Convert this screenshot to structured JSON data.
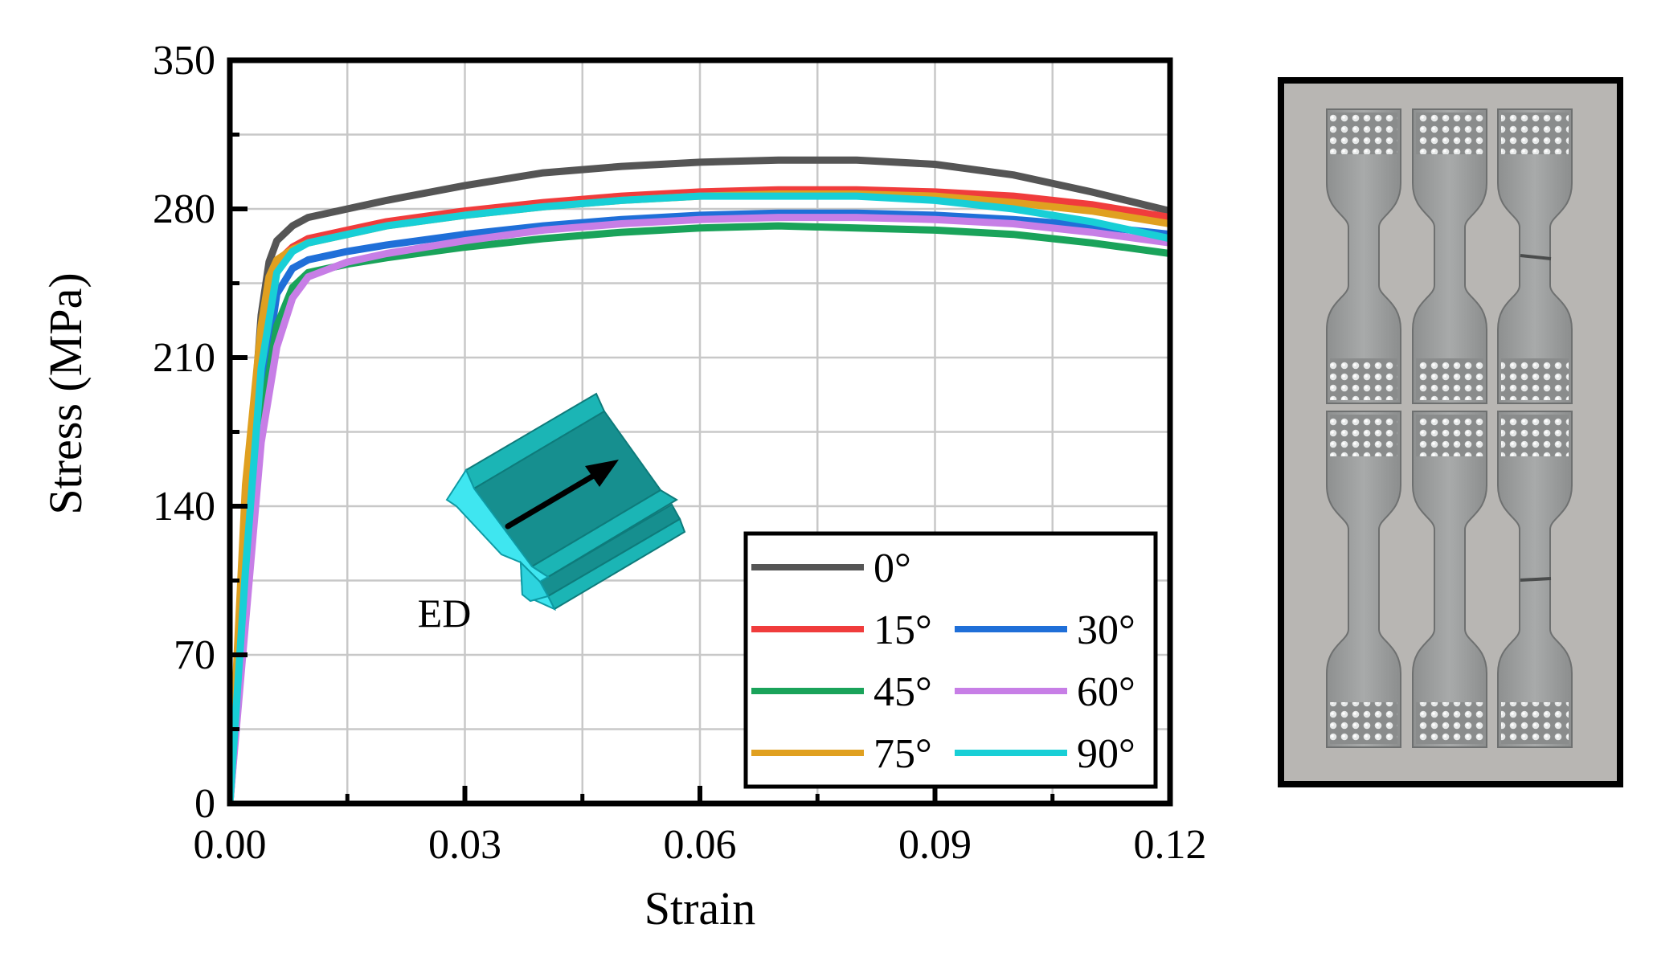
{
  "chart_data": {
    "type": "line",
    "xlabel": "Strain",
    "ylabel": "Stress (MPa)",
    "xlim": [
      0,
      0.12
    ],
    "ylim": [
      0,
      350
    ],
    "xticks": [
      "0.00",
      "0.03",
      "0.06",
      "0.09",
      "0.12"
    ],
    "yticks": [
      "0",
      "70",
      "140",
      "210",
      "280",
      "350"
    ],
    "xtick_values": [
      0,
      0.03,
      0.06,
      0.09,
      0.12
    ],
    "ytick_values": [
      0,
      70,
      140,
      210,
      280,
      350
    ],
    "grid": true,
    "legend_position": "bottom-right",
    "annotation": "ED",
    "series": [
      {
        "name": "0°",
        "color": "#555555",
        "x": [
          0,
          0.002,
          0.004,
          0.005,
          0.006,
          0.008,
          0.01,
          0.015,
          0.02,
          0.03,
          0.04,
          0.05,
          0.06,
          0.07,
          0.08,
          0.09,
          0.1,
          0.11,
          0.12
        ],
        "y": [
          0,
          130,
          230,
          255,
          265,
          272,
          276,
          280,
          284,
          291,
          297,
          300,
          302,
          303,
          303,
          301,
          296,
          288,
          279
        ]
      },
      {
        "name": "15°",
        "color": "#f03c3c",
        "x": [
          0,
          0.002,
          0.004,
          0.005,
          0.006,
          0.008,
          0.01,
          0.015,
          0.02,
          0.03,
          0.04,
          0.05,
          0.06,
          0.07,
          0.08,
          0.09,
          0.1,
          0.11,
          0.12
        ],
        "y": [
          0,
          120,
          220,
          245,
          255,
          262,
          266,
          270,
          274,
          279,
          283,
          286,
          288,
          289,
          289,
          288,
          286,
          282,
          276
        ]
      },
      {
        "name": "30°",
        "color": "#1f6fd8",
        "x": [
          0,
          0.002,
          0.004,
          0.006,
          0.008,
          0.01,
          0.015,
          0.02,
          0.03,
          0.04,
          0.05,
          0.06,
          0.07,
          0.08,
          0.09,
          0.1,
          0.11,
          0.12
        ],
        "y": [
          0,
          100,
          190,
          240,
          252,
          256,
          260,
          263,
          268,
          272,
          275,
          277,
          278,
          278,
          277,
          275,
          272,
          268
        ]
      },
      {
        "name": "45°",
        "color": "#1aa35a",
        "x": [
          0,
          0.002,
          0.004,
          0.006,
          0.008,
          0.01,
          0.015,
          0.02,
          0.03,
          0.04,
          0.05,
          0.06,
          0.07,
          0.08,
          0.09,
          0.1,
          0.11,
          0.12
        ],
        "y": [
          0,
          90,
          180,
          225,
          243,
          250,
          254,
          257,
          262,
          266,
          269,
          271,
          272,
          271,
          270,
          268,
          264,
          259
        ]
      },
      {
        "name": "60°",
        "color": "#c77ee6",
        "x": [
          0,
          0.002,
          0.004,
          0.006,
          0.008,
          0.01,
          0.015,
          0.02,
          0.03,
          0.04,
          0.05,
          0.06,
          0.07,
          0.08,
          0.09,
          0.1,
          0.11,
          0.12
        ],
        "y": [
          0,
          85,
          170,
          215,
          238,
          248,
          255,
          259,
          265,
          270,
          273,
          275,
          276,
          276,
          275,
          273,
          269,
          264
        ]
      },
      {
        "name": "75°",
        "color": "#e0a020",
        "x": [
          0,
          0.002,
          0.004,
          0.005,
          0.006,
          0.008,
          0.01,
          0.015,
          0.02,
          0.03,
          0.04,
          0.05,
          0.06,
          0.07,
          0.08,
          0.09,
          0.1,
          0.11,
          0.12
        ],
        "y": [
          0,
          150,
          225,
          248,
          256,
          261,
          264,
          268,
          272,
          277,
          281,
          284,
          286,
          287,
          287,
          286,
          283,
          279,
          273
        ]
      },
      {
        "name": "90°",
        "color": "#18cfd6",
        "x": [
          0,
          0.002,
          0.004,
          0.006,
          0.008,
          0.01,
          0.015,
          0.02,
          0.03,
          0.04,
          0.05,
          0.06,
          0.07,
          0.08,
          0.09,
          0.1,
          0.11,
          0.12
        ],
        "y": [
          0,
          110,
          205,
          250,
          260,
          264,
          268,
          272,
          277,
          281,
          284,
          286,
          286,
          286,
          284,
          280,
          274,
          266
        ]
      }
    ]
  },
  "colors": {
    "profile_face": "#168f8f",
    "profile_top": "#1bb5b5",
    "profile_edge": "#3fe6f0",
    "photo_background": "#b8b6b3",
    "specimen_metal": "#9a9c9c"
  }
}
